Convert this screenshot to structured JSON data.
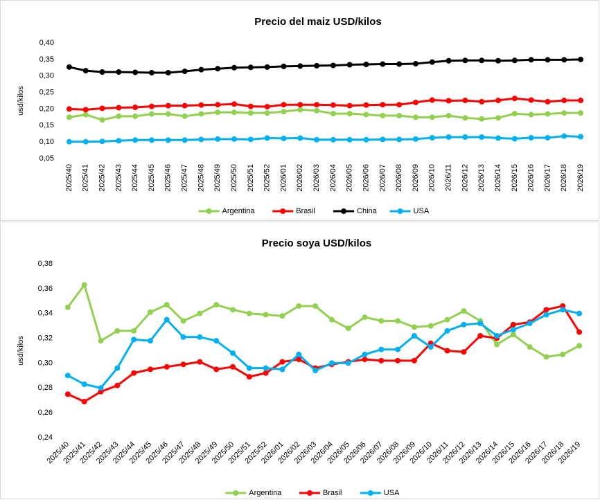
{
  "chart_data": [
    {
      "type": "line",
      "title": "Precio del maiz USD/kilos",
      "y_label": "usd/kilos",
      "categories": [
        "2025/40",
        "2025/41",
        "2025/42",
        "2025/43",
        "2025/44",
        "2025/45",
        "2025/46",
        "2025/47",
        "2025/48",
        "2025/49",
        "2025/50",
        "2025/51",
        "2025/52",
        "2026/01",
        "2026/02",
        "2026/03",
        "2026/04",
        "2026/05",
        "2026/06",
        "2026/07",
        "2026/08",
        "2026/09",
        "2026/10",
        "2026/11",
        "2026/12",
        "2026/13",
        "2026/14",
        "2026/15",
        "2026/16",
        "2026/17",
        "2026/18",
        "2026/19"
      ],
      "series": [
        {
          "name": "Argentina",
          "color": "#92d050",
          "values": [
            0.175,
            0.183,
            0.167,
            0.178,
            0.178,
            0.185,
            0.185,
            0.178,
            0.185,
            0.19,
            0.19,
            0.188,
            0.188,
            0.192,
            0.198,
            0.195,
            0.186,
            0.186,
            0.183,
            0.18,
            0.18,
            0.175,
            0.175,
            0.18,
            0.173,
            0.17,
            0.173,
            0.186,
            0.183,
            0.185,
            0.188,
            0.188
          ]
        },
        {
          "name": "Brasil",
          "color": "#ff0000",
          "values": [
            0.2,
            0.198,
            0.202,
            0.204,
            0.205,
            0.208,
            0.21,
            0.21,
            0.212,
            0.213,
            0.215,
            0.208,
            0.207,
            0.213,
            0.213,
            0.213,
            0.212,
            0.21,
            0.212,
            0.213,
            0.213,
            0.22,
            0.227,
            0.225,
            0.226,
            0.222,
            0.226,
            0.232,
            0.227,
            0.222,
            0.226,
            0.226
          ]
        },
        {
          "name": "China",
          "color": "#000000",
          "values": [
            0.327,
            0.316,
            0.312,
            0.312,
            0.311,
            0.31,
            0.31,
            0.314,
            0.319,
            0.322,
            0.325,
            0.326,
            0.327,
            0.329,
            0.33,
            0.331,
            0.332,
            0.334,
            0.335,
            0.336,
            0.336,
            0.337,
            0.342,
            0.346,
            0.347,
            0.347,
            0.346,
            0.347,
            0.349,
            0.349,
            0.349,
            0.35
          ]
        },
        {
          "name": "USA",
          "color": "#00b0f0",
          "values": [
            0.101,
            0.101,
            0.102,
            0.104,
            0.106,
            0.106,
            0.106,
            0.106,
            0.108,
            0.109,
            0.109,
            0.108,
            0.112,
            0.111,
            0.112,
            0.107,
            0.107,
            0.107,
            0.107,
            0.108,
            0.108,
            0.109,
            0.113,
            0.115,
            0.115,
            0.115,
            0.112,
            0.11,
            0.113,
            0.113,
            0.118,
            0.116
          ]
        }
      ],
      "ylim": [
        0.05,
        0.4
      ],
      "yticks": [
        {
          "value": 0.05,
          "label": "0,05"
        },
        {
          "value": 0.1,
          "label": "0,10"
        },
        {
          "value": 0.15,
          "label": "0,15"
        },
        {
          "value": 0.2,
          "label": "0,20"
        },
        {
          "value": 0.25,
          "label": "0,25"
        },
        {
          "value": 0.3,
          "label": "0,30"
        },
        {
          "value": 0.35,
          "label": "0,35"
        },
        {
          "value": 0.4,
          "label": "0,40"
        }
      ],
      "grid": false,
      "legend": "bottom"
    },
    {
      "type": "line",
      "title": "Precio soya USD/kilos",
      "y_label": "usd/kilos",
      "categories": [
        "2025/40",
        "2025/41",
        "2025/42",
        "2025/43",
        "2025/44",
        "2025/45",
        "2025/46",
        "2025/47",
        "2025/48",
        "2025/49",
        "2025/50",
        "2025/51",
        "2025/52",
        "2026/01",
        "2026/02",
        "2026/03",
        "2026/04",
        "2026/05",
        "2026/06",
        "2026/07",
        "2026/08",
        "2026/09",
        "2026/10",
        "2026/11",
        "2026/12",
        "2026/13",
        "2026/14",
        "2026/15",
        "2026/16",
        "2026/17",
        "2026/18",
        "2026/19"
      ],
      "series": [
        {
          "name": "Argentina",
          "color": "#92d050",
          "values": [
            0.345,
            0.363,
            0.318,
            0.326,
            0.326,
            0.341,
            0.347,
            0.334,
            0.34,
            0.347,
            0.343,
            0.34,
            0.339,
            0.338,
            0.346,
            0.346,
            0.335,
            0.328,
            0.337,
            0.334,
            0.334,
            0.329,
            0.33,
            0.335,
            0.342,
            0.334,
            0.315,
            0.323,
            0.313,
            0.305,
            0.307,
            0.314
          ]
        },
        {
          "name": "Brasil",
          "color": "#ff0000",
          "values": [
            0.275,
            0.269,
            0.277,
            0.282,
            0.292,
            0.295,
            0.297,
            0.299,
            0.301,
            0.295,
            0.297,
            0.289,
            0.292,
            0.301,
            0.303,
            0.296,
            0.299,
            0.301,
            0.303,
            0.302,
            0.302,
            0.302,
            0.316,
            0.31,
            0.309,
            0.322,
            0.32,
            0.331,
            0.333,
            0.343,
            0.346,
            0.325
          ]
        },
        {
          "name": "USA",
          "color": "#00b0f0",
          "values": [
            0.29,
            0.283,
            0.28,
            0.296,
            0.319,
            0.318,
            0.335,
            0.321,
            0.321,
            0.318,
            0.308,
            0.296,
            0.296,
            0.295,
            0.307,
            0.294,
            0.3,
            0.3,
            0.307,
            0.311,
            0.311,
            0.322,
            0.313,
            0.326,
            0.331,
            0.332,
            0.322,
            0.327,
            0.332,
            0.339,
            0.343,
            0.34
          ]
        }
      ],
      "ylim": [
        0.24,
        0.38
      ],
      "yticks": [
        {
          "value": 0.24,
          "label": "0,24"
        },
        {
          "value": 0.26,
          "label": "0,26"
        },
        {
          "value": 0.28,
          "label": "0,28"
        },
        {
          "value": 0.3,
          "label": "0,30"
        },
        {
          "value": 0.32,
          "label": "0,32"
        },
        {
          "value": 0.34,
          "label": "0,34"
        },
        {
          "value": 0.36,
          "label": "0,36"
        },
        {
          "value": 0.38,
          "label": "0,38"
        }
      ],
      "grid": false,
      "legend": "bottom"
    }
  ]
}
